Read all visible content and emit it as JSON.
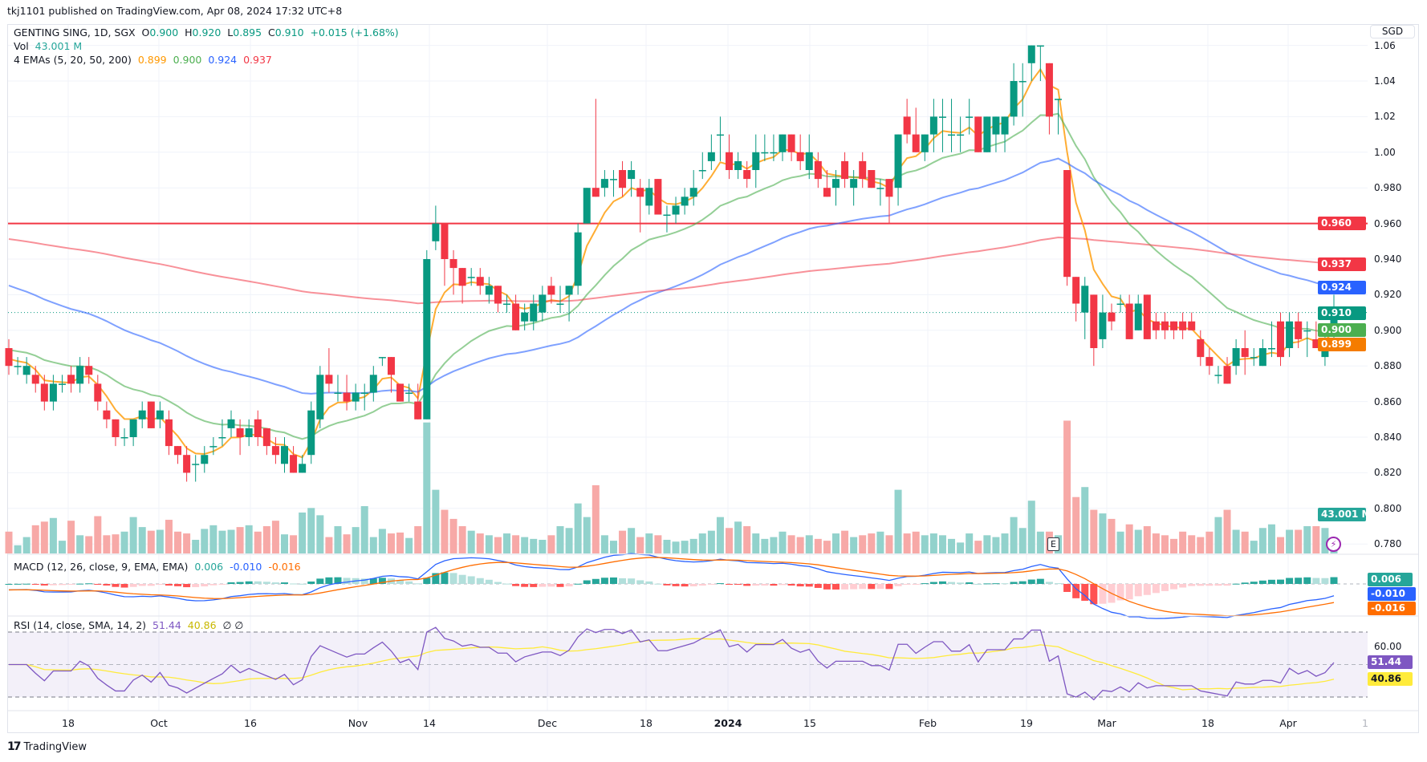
{
  "header": {
    "published": "tkj1101 published on TradingView.com, Apr 08, 2024 17:32 UTC+8"
  },
  "legend": {
    "symbol": "GENTING SING, 1D, SGX",
    "o_label": "O",
    "o": "0.900",
    "h_label": "H",
    "h": "0.920",
    "l_label": "L",
    "l": "0.895",
    "c_label": "C",
    "c": "0.910",
    "change": "+0.015 (+1.68%)",
    "vol_label": "Vol",
    "vol": "43.001 M",
    "ema_label": "4 EMAs (5, 20, 50, 200)",
    "ema_values": [
      "0.899",
      "0.900",
      "0.924",
      "0.937"
    ]
  },
  "currency": "SGD",
  "price_axis": {
    "ticks": [
      "1.06",
      "1.04",
      "1.02",
      "1.00",
      "0.980",
      "0.960",
      "0.940",
      "0.920",
      "0.900",
      "0.880",
      "0.860",
      "0.840",
      "0.820",
      "0.800",
      "0.780"
    ],
    "labels": {
      "hline": "0.960",
      "ema200": "0.937",
      "ema50": "0.924",
      "last": "0.910",
      "ema20": "0.900",
      "ema5": "0.899",
      "volume": "43.001 M"
    }
  },
  "colors": {
    "up": "#089981",
    "down": "#f23645",
    "ema5": "#ff9800",
    "ema20": "#4caf50",
    "ema50": "#2962ff",
    "ema200": "#f23645",
    "hline": "#f23645",
    "rsi": "#7e57c2",
    "rsi_ma": "#ffeb3b"
  },
  "markers": {
    "earnings": "E",
    "bolt_icon": "lightning-icon"
  },
  "macd": {
    "label": "MACD (12, 26, close, 9, EMA, EMA)",
    "hist": "0.006",
    "macd": "-0.010",
    "signal": "-0.016"
  },
  "rsi": {
    "label": "RSI (14, close, SMA, 14, 2)",
    "value": "51.44",
    "ma": "40.86",
    "extra": "∅ ∅",
    "tick": "60.00"
  },
  "time_axis": {
    "labels": [
      "18",
      "Oct",
      "16",
      "Nov",
      "14",
      "Dec",
      "18",
      "2024",
      "15",
      "Feb",
      "19",
      "Mar",
      "18",
      "Apr",
      "1"
    ]
  },
  "footer": {
    "brand": "TradingView"
  },
  "chart_data": {
    "type": "candlestick",
    "hline": 0.96,
    "last_price": 0.91,
    "ema_seed": {
      "5": 0.886,
      "20": 0.89,
      "50": 0.927,
      "200": 0.952,
      "12": 0.884,
      "26": 0.889
    },
    "ohlc": [
      [
        0.89,
        0.895,
        0.875,
        0.88
      ],
      [
        0.88,
        0.885,
        0.875,
        0.88
      ],
      [
        0.875,
        0.885,
        0.87,
        0.88
      ],
      [
        0.875,
        0.88,
        0.865,
        0.87
      ],
      [
        0.87,
        0.875,
        0.855,
        0.86
      ],
      [
        0.86,
        0.875,
        0.855,
        0.87
      ],
      [
        0.87,
        0.875,
        0.865,
        0.87
      ],
      [
        0.875,
        0.88,
        0.865,
        0.87
      ],
      [
        0.87,
        0.885,
        0.865,
        0.88
      ],
      [
        0.88,
        0.885,
        0.87,
        0.875
      ],
      [
        0.87,
        0.875,
        0.855,
        0.86
      ],
      [
        0.855,
        0.86,
        0.845,
        0.85
      ],
      [
        0.85,
        0.85,
        0.835,
        0.84
      ],
      [
        0.84,
        0.845,
        0.835,
        0.84
      ],
      [
        0.84,
        0.85,
        0.835,
        0.85
      ],
      [
        0.85,
        0.86,
        0.845,
        0.855
      ],
      [
        0.86,
        0.86,
        0.845,
        0.845
      ],
      [
        0.85,
        0.86,
        0.845,
        0.855
      ],
      [
        0.85,
        0.855,
        0.83,
        0.835
      ],
      [
        0.835,
        0.835,
        0.825,
        0.83
      ],
      [
        0.83,
        0.835,
        0.815,
        0.82
      ],
      [
        0.825,
        0.83,
        0.815,
        0.825
      ],
      [
        0.825,
        0.835,
        0.82,
        0.83
      ],
      [
        0.835,
        0.84,
        0.83,
        0.835
      ],
      [
        0.84,
        0.85,
        0.835,
        0.84
      ],
      [
        0.845,
        0.855,
        0.84,
        0.85
      ],
      [
        0.845,
        0.85,
        0.83,
        0.84
      ],
      [
        0.84,
        0.85,
        0.835,
        0.845
      ],
      [
        0.85,
        0.855,
        0.835,
        0.84
      ],
      [
        0.845,
        0.845,
        0.83,
        0.835
      ],
      [
        0.835,
        0.84,
        0.825,
        0.83
      ],
      [
        0.825,
        0.84,
        0.82,
        0.835
      ],
      [
        0.83,
        0.835,
        0.82,
        0.82
      ],
      [
        0.82,
        0.83,
        0.82,
        0.825
      ],
      [
        0.83,
        0.86,
        0.825,
        0.855
      ],
      [
        0.85,
        0.88,
        0.845,
        0.875
      ],
      [
        0.875,
        0.89,
        0.865,
        0.87
      ],
      [
        0.865,
        0.875,
        0.86,
        0.865
      ],
      [
        0.865,
        0.875,
        0.855,
        0.86
      ],
      [
        0.86,
        0.87,
        0.855,
        0.865
      ],
      [
        0.865,
        0.87,
        0.855,
        0.865
      ],
      [
        0.865,
        0.88,
        0.86,
        0.875
      ],
      [
        0.885,
        0.885,
        0.88,
        0.885
      ],
      [
        0.885,
        0.885,
        0.865,
        0.875
      ],
      [
        0.87,
        0.87,
        0.86,
        0.86
      ],
      [
        0.865,
        0.87,
        0.86,
        0.865
      ],
      [
        0.86,
        0.87,
        0.85,
        0.85
      ],
      [
        0.85,
        0.945,
        0.85,
        0.94
      ],
      [
        0.95,
        0.97,
        0.945,
        0.96
      ],
      [
        0.96,
        0.96,
        0.925,
        0.94
      ],
      [
        0.94,
        0.945,
        0.92,
        0.935
      ],
      [
        0.935,
        0.935,
        0.915,
        0.925
      ],
      [
        0.93,
        0.935,
        0.925,
        0.93
      ],
      [
        0.93,
        0.935,
        0.92,
        0.925
      ],
      [
        0.92,
        0.93,
        0.915,
        0.925
      ],
      [
        0.925,
        0.925,
        0.91,
        0.915
      ],
      [
        0.915,
        0.92,
        0.91,
        0.915
      ],
      [
        0.915,
        0.92,
        0.9,
        0.9
      ],
      [
        0.905,
        0.915,
        0.9,
        0.91
      ],
      [
        0.905,
        0.92,
        0.9,
        0.915
      ],
      [
        0.91,
        0.925,
        0.905,
        0.92
      ],
      [
        0.925,
        0.93,
        0.915,
        0.92
      ],
      [
        0.915,
        0.925,
        0.91,
        0.915
      ],
      [
        0.92,
        0.925,
        0.905,
        0.925
      ],
      [
        0.925,
        0.96,
        0.92,
        0.955
      ],
      [
        0.96,
        0.98,
        0.96,
        0.98
      ],
      [
        0.98,
        1.03,
        0.975,
        0.975
      ],
      [
        0.98,
        0.99,
        0.975,
        0.985
      ],
      [
        0.985,
        0.99,
        0.975,
        0.985
      ],
      [
        0.99,
        0.995,
        0.975,
        0.98
      ],
      [
        0.985,
        0.995,
        0.975,
        0.99
      ],
      [
        0.98,
        0.985,
        0.955,
        0.975
      ],
      [
        0.97,
        0.985,
        0.965,
        0.98
      ],
      [
        0.985,
        0.985,
        0.965,
        0.965
      ],
      [
        0.965,
        0.97,
        0.955,
        0.965
      ],
      [
        0.965,
        0.975,
        0.96,
        0.97
      ],
      [
        0.97,
        0.98,
        0.965,
        0.975
      ],
      [
        0.975,
        0.99,
        0.97,
        0.98
      ],
      [
        0.99,
        1.0,
        0.985,
        0.99
      ],
      [
        0.995,
        1.01,
        0.99,
        1.0
      ],
      [
        1.01,
        1.02,
        0.995,
        1.01
      ],
      [
        1.0,
        1.01,
        0.985,
        0.99
      ],
      [
        0.99,
        1.0,
        0.985,
        0.995
      ],
      [
        0.99,
        0.995,
        0.98,
        0.985
      ],
      [
        0.99,
        1.01,
        0.98,
        1.0
      ],
      [
        1.0,
        1.01,
        0.995,
        1.0
      ],
      [
        1.0,
        1.01,
        0.995,
        1.0
      ],
      [
        1.0,
        1.01,
        0.995,
        1.01
      ],
      [
        1.01,
        1.01,
        0.995,
        1.0
      ],
      [
        1.0,
        1.01,
        0.99,
        0.995
      ],
      [
        0.99,
        1.01,
        0.985,
        1.0
      ],
      [
        0.995,
        1.0,
        0.98,
        0.985
      ],
      [
        0.98,
        0.99,
        0.975,
        0.975
      ],
      [
        0.98,
        0.99,
        0.97,
        0.985
      ],
      [
        0.995,
        1.0,
        0.98,
        0.985
      ],
      [
        0.98,
        0.99,
        0.97,
        0.985
      ],
      [
        0.995,
        1.0,
        0.98,
        0.985
      ],
      [
        0.99,
        0.99,
        0.98,
        0.98
      ],
      [
        0.98,
        0.985,
        0.97,
        0.98
      ],
      [
        0.985,
        0.985,
        0.96,
        0.975
      ],
      [
        0.98,
        1.01,
        0.97,
        1.01
      ],
      [
        1.02,
        1.03,
        1.005,
        1.01
      ],
      [
        1.01,
        1.025,
        1.0,
        1.0
      ],
      [
        1.0,
        1.01,
        0.995,
        1.01
      ],
      [
        1.01,
        1.03,
        1.0,
        1.02
      ],
      [
        1.02,
        1.03,
        1.0,
        1.02
      ],
      [
        1.01,
        1.03,
        1.0,
        1.01
      ],
      [
        1.01,
        1.02,
        1.0,
        1.01
      ],
      [
        1.02,
        1.03,
        1.01,
        1.02
      ],
      [
        1.02,
        1.02,
        1.0,
        1.0
      ],
      [
        1.0,
        1.02,
        1.0,
        1.02
      ],
      [
        1.01,
        1.02,
        1.0,
        1.02
      ],
      [
        1.01,
        1.02,
        1.0,
        1.02
      ],
      [
        1.02,
        1.05,
        1.015,
        1.04
      ],
      [
        1.04,
        1.05,
        1.02,
        1.04
      ],
      [
        1.05,
        1.06,
        1.04,
        1.06
      ],
      [
        1.06,
        1.06,
        1.04,
        1.06
      ],
      [
        1.05,
        1.05,
        1.01,
        1.02
      ],
      [
        1.03,
        1.03,
        1.01,
        1.03
      ],
      [
        0.99,
        0.99,
        0.925,
        0.93
      ],
      [
        0.93,
        0.93,
        0.905,
        0.915
      ],
      [
        0.91,
        0.93,
        0.895,
        0.925
      ],
      [
        0.92,
        0.92,
        0.88,
        0.89
      ],
      [
        0.895,
        0.92,
        0.89,
        0.91
      ],
      [
        0.91,
        0.915,
        0.9,
        0.905
      ],
      [
        0.915,
        0.92,
        0.91,
        0.915
      ],
      [
        0.915,
        0.92,
        0.895,
        0.895
      ],
      [
        0.9,
        0.92,
        0.9,
        0.915
      ],
      [
        0.92,
        0.92,
        0.895,
        0.895
      ],
      [
        0.905,
        0.91,
        0.895,
        0.9
      ],
      [
        0.905,
        0.91,
        0.895,
        0.9
      ],
      [
        0.905,
        0.905,
        0.895,
        0.9
      ],
      [
        0.905,
        0.91,
        0.895,
        0.9
      ],
      [
        0.905,
        0.91,
        0.9,
        0.9
      ],
      [
        0.895,
        0.9,
        0.88,
        0.885
      ],
      [
        0.885,
        0.89,
        0.875,
        0.88
      ],
      [
        0.875,
        0.88,
        0.87,
        0.875
      ],
      [
        0.88,
        0.885,
        0.87,
        0.87
      ],
      [
        0.88,
        0.895,
        0.875,
        0.89
      ],
      [
        0.89,
        0.9,
        0.875,
        0.885
      ],
      [
        0.885,
        0.89,
        0.88,
        0.885
      ],
      [
        0.88,
        0.895,
        0.88,
        0.89
      ],
      [
        0.89,
        0.905,
        0.885,
        0.89
      ],
      [
        0.905,
        0.91,
        0.88,
        0.885
      ],
      [
        0.89,
        0.91,
        0.885,
        0.905
      ],
      [
        0.905,
        0.91,
        0.89,
        0.895
      ],
      [
        0.9,
        0.905,
        0.885,
        0.9
      ],
      [
        0.895,
        0.905,
        0.89,
        0.89
      ],
      [
        0.885,
        0.9,
        0.88,
        0.895
      ],
      [
        0.9,
        0.92,
        0.895,
        0.91
      ]
    ],
    "volume_millions": [
      24,
      9,
      18,
      31,
      35,
      39,
      14,
      36,
      20,
      19,
      41,
      20,
      21,
      24,
      40,
      29,
      25,
      26,
      37,
      24,
      22,
      15,
      27,
      31,
      25,
      26,
      29,
      31,
      24,
      30,
      36,
      21,
      20,
      45,
      50,
      42,
      18,
      30,
      21,
      29,
      52,
      18,
      27,
      22,
      23,
      17,
      30,
      144,
      70,
      48,
      38,
      30,
      25,
      22,
      20,
      18,
      22,
      20,
      18,
      16,
      15,
      20,
      30,
      28,
      55,
      40,
      75,
      20,
      14,
      25,
      28,
      18,
      22,
      20,
      15,
      13,
      14,
      16,
      22,
      25,
      40,
      28,
      35,
      30,
      22,
      16,
      18,
      24,
      20,
      18,
      20,
      16,
      14,
      22,
      25,
      18,
      20,
      22,
      24,
      20,
      70,
      22,
      24,
      20,
      22,
      20,
      16,
      12,
      22,
      14,
      20,
      18,
      22,
      40,
      28,
      58,
      24,
      24,
      20,
      146,
      62,
      73,
      48,
      44,
      38,
      24,
      32,
      26,
      30,
      22,
      20,
      16,
      24,
      20,
      18,
      24,
      40,
      48,
      26,
      24,
      14,
      28,
      32,
      18,
      26,
      26,
      30,
      30,
      28,
      18,
      34,
      43
    ]
  }
}
